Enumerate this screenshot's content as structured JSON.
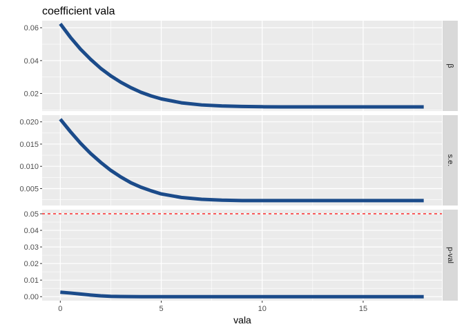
{
  "chart_data": {
    "type": "line",
    "title": "coefficient vala",
    "xlabel": "vala",
    "ylabel": "",
    "x_ticks": [
      0,
      5,
      10,
      15
    ],
    "xlim": [
      -0.9,
      18.9
    ],
    "line_color": "#1B4B8A",
    "reference_line": {
      "panel": "p-val",
      "y": 0.05,
      "color": "#FF0000",
      "style": "dashed"
    },
    "facets": [
      {
        "strip": "β",
        "ylim": [
          0.0093,
          0.0643
        ],
        "y_ticks": [
          0.02,
          0.04,
          0.06
        ],
        "y_tick_labels": [
          "0.02",
          "0.04",
          "0.06"
        ],
        "x": [
          0,
          0.5,
          1,
          1.5,
          2,
          2.5,
          3,
          3.5,
          4,
          4.5,
          5,
          6,
          7,
          8,
          9,
          10,
          11,
          12,
          13,
          14,
          15,
          16,
          17,
          18
        ],
        "y": [
          0.0624,
          0.0542,
          0.047,
          0.0408,
          0.0353,
          0.0307,
          0.0268,
          0.0235,
          0.0207,
          0.0185,
          0.0167,
          0.0143,
          0.013,
          0.0124,
          0.0121,
          0.0119,
          0.0118,
          0.0118,
          0.0118,
          0.0118,
          0.0118,
          0.0118,
          0.0118,
          0.0118
        ]
      },
      {
        "strip": "s.e.",
        "ylim": [
          0.0012,
          0.0215
        ],
        "y_ticks": [
          0.005,
          0.01,
          0.015,
          0.02
        ],
        "y_tick_labels": [
          "0.005",
          "0.010",
          "0.015",
          "0.020"
        ],
        "x": [
          0,
          0.5,
          1,
          1.5,
          2,
          2.5,
          3,
          3.5,
          4,
          4.5,
          5,
          6,
          7,
          8,
          9,
          10,
          11,
          12,
          13,
          14,
          15,
          16,
          17,
          18
        ],
        "y": [
          0.0206,
          0.0178,
          0.0152,
          0.0129,
          0.0109,
          0.0091,
          0.0076,
          0.0063,
          0.0053,
          0.0045,
          0.0038,
          0.003,
          0.0026,
          0.0024,
          0.0023,
          0.0023,
          0.0023,
          0.0023,
          0.0023,
          0.0023,
          0.0023,
          0.0023,
          0.0023,
          0.0023
        ]
      },
      {
        "strip": "p-val",
        "ylim": [
          -0.0024,
          0.0525
        ],
        "y_ticks": [
          0,
          0.01,
          0.02,
          0.03,
          0.04,
          0.05
        ],
        "y_tick_labels": [
          "0.00",
          "0.01",
          "0.02",
          "0.03",
          "0.04",
          "0.05"
        ],
        "x": [
          0,
          0.5,
          1,
          1.5,
          2,
          2.5,
          3,
          4,
          5,
          6,
          8,
          10,
          12,
          14,
          16,
          18
        ],
        "y": [
          0.0027,
          0.0022,
          0.0016,
          0.001,
          0.0005,
          0.0002,
          0.0001,
          0,
          0,
          0,
          0,
          0,
          0,
          0,
          0,
          0
        ]
      }
    ]
  }
}
